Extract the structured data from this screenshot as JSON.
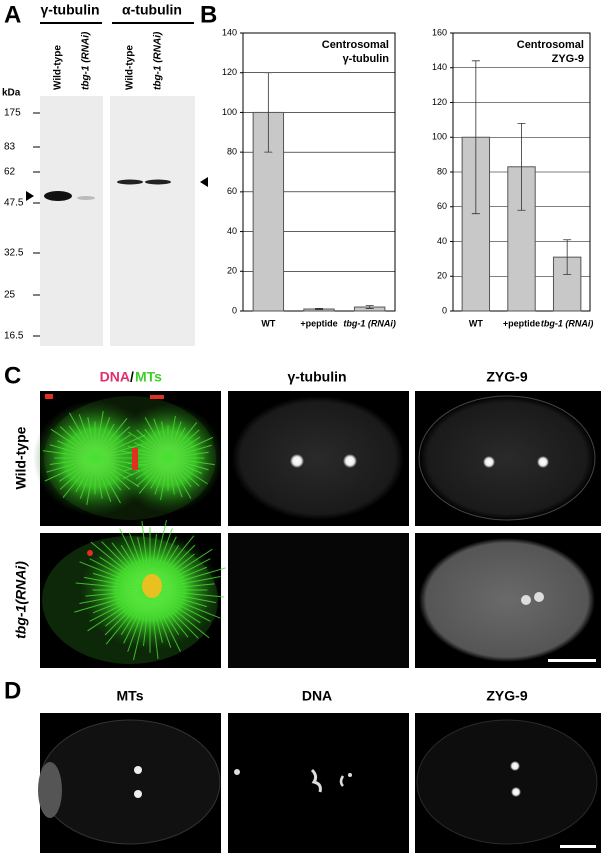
{
  "panel_labels": [
    "A",
    "B",
    "C",
    "D"
  ],
  "blot": {
    "headers": [
      "γ-tubulin",
      "α-tubulin"
    ],
    "lanes": [
      "Wild-type",
      "tbg-1 (RNAi)",
      "Wild-type",
      "tbg-1 (RNAi)"
    ],
    "unit": "kDa",
    "markers": [
      "175",
      "83",
      "62",
      "47.5",
      "32.5",
      "25",
      "16.5"
    ]
  },
  "chart_data": [
    {
      "type": "bar",
      "title": [
        "Centrosomal",
        "γ-tubulin"
      ],
      "categories": [
        "WT",
        "+peptide",
        "tbg-1 (RNAi)"
      ],
      "values": [
        100,
        1,
        2
      ],
      "errors": [
        20,
        0.3,
        0.7
      ],
      "color": "#c8c8c8",
      "ylim": [
        0,
        140
      ],
      "yticks": [
        0,
        20,
        40,
        60,
        80,
        100,
        120,
        140
      ],
      "grid": true
    },
    {
      "type": "bar",
      "title": [
        "Centrosomal",
        "ZYG-9"
      ],
      "categories": [
        "WT",
        "+peptide",
        "tbg-1 (RNAi)"
      ],
      "values": [
        100,
        83,
        31
      ],
      "errors": [
        44,
        25,
        10
      ],
      "color": "#c8c8c8",
      "ylim": [
        0,
        160
      ],
      "yticks": [
        0,
        20,
        40,
        60,
        80,
        100,
        120,
        140,
        160
      ],
      "grid": true
    }
  ],
  "micrographs": {
    "merge": [
      "DNA",
      "/",
      "MTs"
    ],
    "columns": [
      "γ-tubulin",
      "ZYG-9"
    ],
    "rows": [
      "Wild-type",
      "tbg-1(RNAi)"
    ]
  },
  "panel_d": {
    "columns": [
      "MTs",
      "DNA",
      "ZYG-9"
    ]
  }
}
